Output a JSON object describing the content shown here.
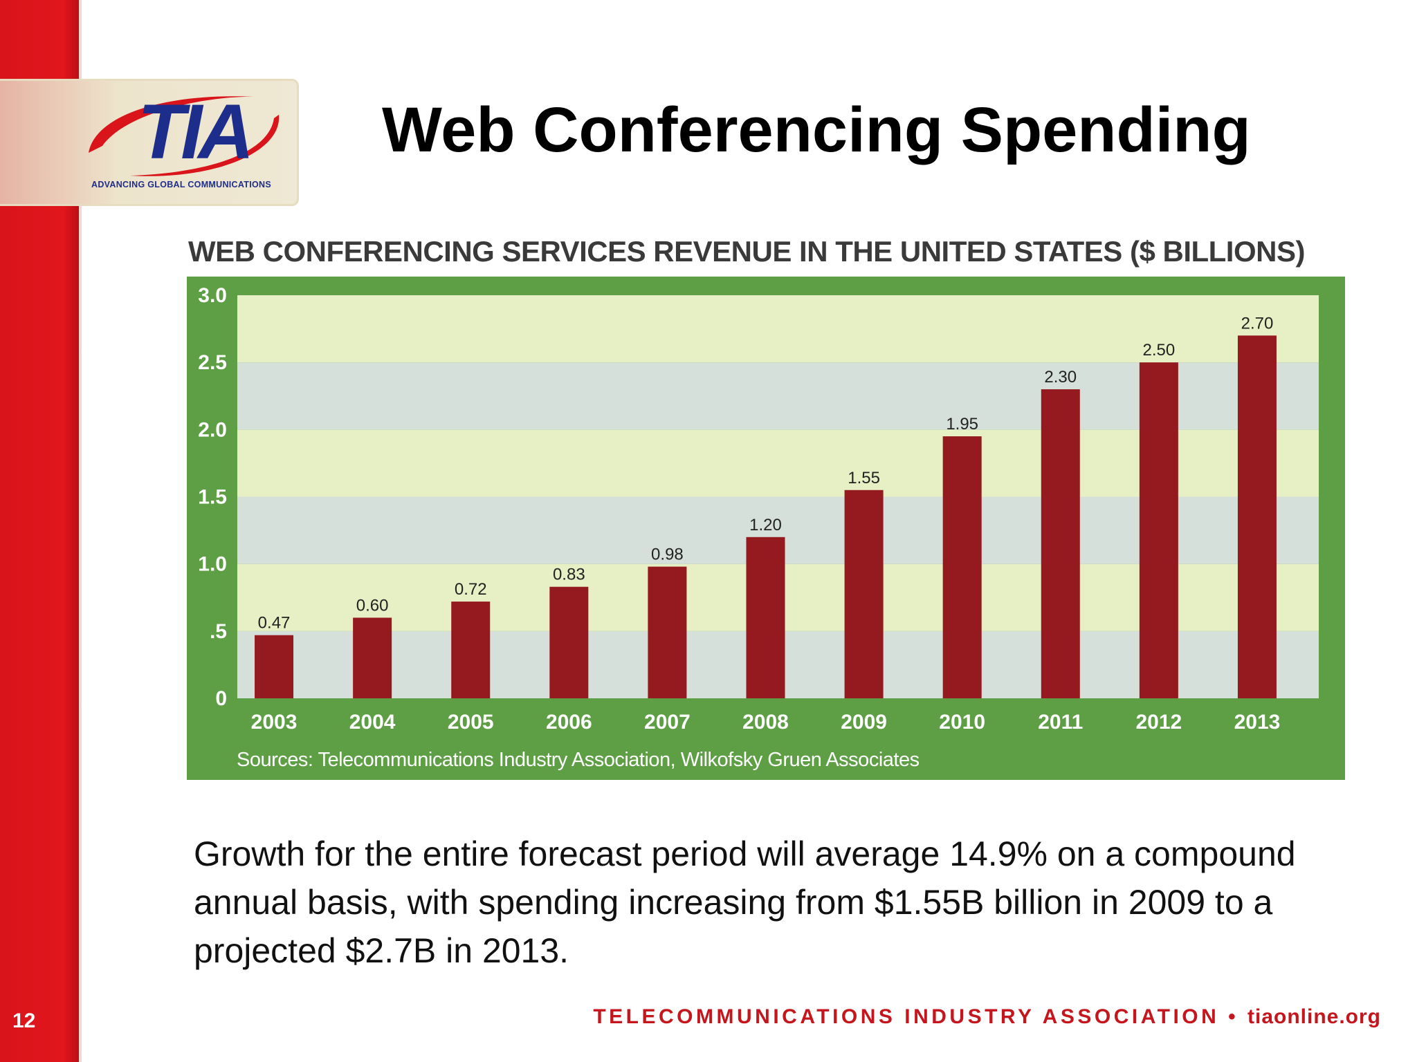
{
  "slide": {
    "number": "12",
    "title": "Web Conferencing Spending",
    "body": "Growth for the entire forecast period will average 14.9% on a compound annual basis, with spending increasing from $1.55B billion in 2009 to a projected $2.7B in 2013."
  },
  "logo": {
    "text": "TIA",
    "tagline": "ADVANCING GLOBAL COMMUNICATIONS"
  },
  "footer": {
    "org": "TELECOMMUNICATIONS INDUSTRY ASSOCIATION",
    "separator": "•",
    "url": "tiaonline.org"
  },
  "colors": {
    "accent_red": "#d9141b",
    "bar": "#951a1f",
    "frame_green": "#5e9f45",
    "band_yellow": "#e7efc4",
    "band_grey": "#d6e0da"
  },
  "chart_data": {
    "type": "bar",
    "title": "WEB CONFERENCING SERVICES REVENUE IN THE UNITED STATES ($ BILLIONS)",
    "categories": [
      "2003",
      "2004",
      "2005",
      "2006",
      "2007",
      "2008",
      "2009",
      "2010",
      "2011",
      "2012",
      "2013"
    ],
    "values": [
      0.47,
      0.6,
      0.72,
      0.83,
      0.98,
      1.2,
      1.55,
      1.95,
      2.3,
      2.5,
      2.7
    ],
    "value_labels": [
      "0.47",
      "0.60",
      "0.72",
      "0.83",
      "0.98",
      "1.20",
      "1.55",
      "1.95",
      "2.30",
      "2.50",
      "2.70"
    ],
    "yticks": [
      0,
      0.5,
      1.0,
      1.5,
      2.0,
      2.5,
      3.0
    ],
    "ytick_labels": [
      "0",
      ".5",
      "1.0",
      "1.5",
      "2.0",
      "2.5",
      "3.0"
    ],
    "ylim": [
      0,
      3.0
    ],
    "xlabel": "",
    "ylabel": "",
    "grid": "alternating horizontal bands",
    "legend": "none",
    "source": "Sources: Telecommunications Industry Association, Wilkofsky Gruen Associates"
  }
}
